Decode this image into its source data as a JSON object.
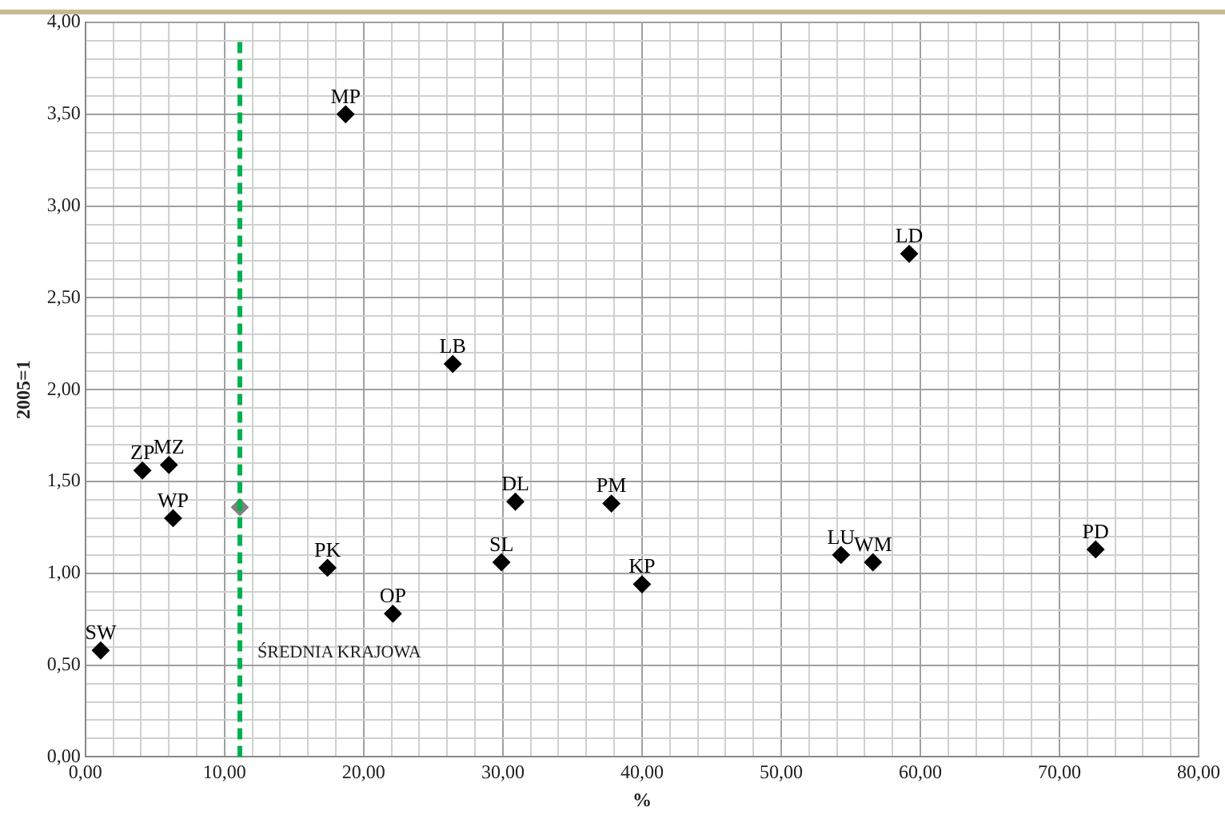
{
  "chart_data": {
    "type": "scatter",
    "xlabel": "%",
    "ylabel": "2005=1",
    "xlim": [
      0,
      80
    ],
    "ylim": [
      0,
      4
    ],
    "xticks": [
      {
        "value": 0,
        "label": "0,00"
      },
      {
        "value": 2,
        "label": null
      },
      {
        "value": 4,
        "label": null
      },
      {
        "value": 6,
        "label": null
      },
      {
        "value": 8,
        "label": null
      },
      {
        "value": 10,
        "label": "10,00"
      },
      {
        "value": 12,
        "label": null
      },
      {
        "value": 14,
        "label": null
      },
      {
        "value": 16,
        "label": null
      },
      {
        "value": 18,
        "label": null
      },
      {
        "value": 20,
        "label": "20,00"
      },
      {
        "value": 22,
        "label": null
      },
      {
        "value": 24,
        "label": null
      },
      {
        "value": 26,
        "label": null
      },
      {
        "value": 28,
        "label": null
      },
      {
        "value": 30,
        "label": "30,00"
      },
      {
        "value": 32,
        "label": null
      },
      {
        "value": 34,
        "label": null
      },
      {
        "value": 36,
        "label": null
      },
      {
        "value": 38,
        "label": null
      },
      {
        "value": 40,
        "label": "40,00"
      },
      {
        "value": 42,
        "label": null
      },
      {
        "value": 44,
        "label": null
      },
      {
        "value": 46,
        "label": null
      },
      {
        "value": 48,
        "label": null
      },
      {
        "value": 50,
        "label": "50,00"
      },
      {
        "value": 52,
        "label": null
      },
      {
        "value": 54,
        "label": null
      },
      {
        "value": 56,
        "label": null
      },
      {
        "value": 58,
        "label": null
      },
      {
        "value": 60,
        "label": "60,00"
      },
      {
        "value": 62,
        "label": null
      },
      {
        "value": 64,
        "label": null
      },
      {
        "value": 66,
        "label": null
      },
      {
        "value": 68,
        "label": null
      },
      {
        "value": 70,
        "label": "70,00"
      },
      {
        "value": 72,
        "label": null
      },
      {
        "value": 74,
        "label": null
      },
      {
        "value": 76,
        "label": null
      },
      {
        "value": 78,
        "label": null
      },
      {
        "value": 80,
        "label": "80,00"
      }
    ],
    "yticks": [
      {
        "value": 0,
        "label": "0,00"
      },
      {
        "value": 0.1,
        "label": null
      },
      {
        "value": 0.2,
        "label": null
      },
      {
        "value": 0.3,
        "label": null
      },
      {
        "value": 0.4,
        "label": null
      },
      {
        "value": 0.5,
        "label": "0,50"
      },
      {
        "value": 0.6,
        "label": null
      },
      {
        "value": 0.7,
        "label": null
      },
      {
        "value": 0.8,
        "label": null
      },
      {
        "value": 0.9,
        "label": null
      },
      {
        "value": 1,
        "label": "1,00"
      },
      {
        "value": 1.1,
        "label": null
      },
      {
        "value": 1.2,
        "label": null
      },
      {
        "value": 1.3,
        "label": null
      },
      {
        "value": 1.4,
        "label": null
      },
      {
        "value": 1.5,
        "label": "1,50"
      },
      {
        "value": 1.6,
        "label": null
      },
      {
        "value": 1.7,
        "label": null
      },
      {
        "value": 1.8,
        "label": null
      },
      {
        "value": 1.9,
        "label": null
      },
      {
        "value": 2,
        "label": "2,00"
      },
      {
        "value": 2.1,
        "label": null
      },
      {
        "value": 2.2,
        "label": null
      },
      {
        "value": 2.3,
        "label": null
      },
      {
        "value": 2.4,
        "label": null
      },
      {
        "value": 2.5,
        "label": "2,50"
      },
      {
        "value": 2.6,
        "label": null
      },
      {
        "value": 2.7,
        "label": null
      },
      {
        "value": 2.8,
        "label": null
      },
      {
        "value": 2.9,
        "label": null
      },
      {
        "value": 3,
        "label": "3,00"
      },
      {
        "value": 3.1,
        "label": null
      },
      {
        "value": 3.2,
        "label": null
      },
      {
        "value": 3.3,
        "label": null
      },
      {
        "value": 3.4,
        "label": null
      },
      {
        "value": 3.5,
        "label": "3,50"
      },
      {
        "value": 3.6,
        "label": null
      },
      {
        "value": 3.7,
        "label": null
      },
      {
        "value": 3.8,
        "label": null
      },
      {
        "value": 3.9,
        "label": null
      },
      {
        "value": 4,
        "label": "4,00"
      }
    ],
    "grid": true,
    "marker": "diamond",
    "legend": false,
    "series": [
      {
        "color": "#000000",
        "x": [
          1.1,
          4.1,
          6.0,
          6.3,
          17.4,
          22.1,
          29.9,
          30.9,
          37.8,
          40.0,
          54.3,
          56.6,
          72.6,
          59.2,
          18.7,
          26.4
        ],
        "values": [
          0.58,
          1.56,
          1.59,
          1.3,
          1.03,
          0.78,
          1.06,
          1.39,
          1.38,
          0.94,
          1.1,
          1.06,
          1.13,
          2.74,
          3.5,
          2.14
        ]
      },
      {
        "color": "#808080",
        "x": [
          11.1
        ],
        "values": [
          1.36
        ]
      }
    ],
    "ref_lines": [
      {
        "axis": "x",
        "value": 11.1,
        "label": "ŚREDNIA KRAJOWA",
        "color": "#00b050",
        "line_style": "dashed"
      }
    ],
    "annotations": [
      {
        "text": "SW",
        "x": 1.1,
        "y": 0.58
      },
      {
        "text": "ZP",
        "x": 4.1,
        "y": 1.56
      },
      {
        "text": "MZ",
        "x": 6.0,
        "y": 1.59
      },
      {
        "text": "WP",
        "x": 6.3,
        "y": 1.3
      },
      {
        "text": "PK",
        "x": 17.4,
        "y": 1.03
      },
      {
        "text": "OP",
        "x": 22.1,
        "y": 0.78
      },
      {
        "text": "SL",
        "x": 29.9,
        "y": 1.06
      },
      {
        "text": "DL",
        "x": 30.9,
        "y": 1.39
      },
      {
        "text": "PM",
        "x": 37.8,
        "y": 1.38
      },
      {
        "text": "KP",
        "x": 40.0,
        "y": 0.94
      },
      {
        "text": "LU",
        "x": 54.3,
        "y": 1.1
      },
      {
        "text": "WM",
        "x": 56.6,
        "y": 1.06
      },
      {
        "text": "PD",
        "x": 72.6,
        "y": 1.13
      },
      {
        "text": "LD",
        "x": 59.2,
        "y": 2.74
      },
      {
        "text": "MP",
        "x": 18.7,
        "y": 3.5
      },
      {
        "text": "LB",
        "x": 26.4,
        "y": 2.14
      }
    ]
  }
}
